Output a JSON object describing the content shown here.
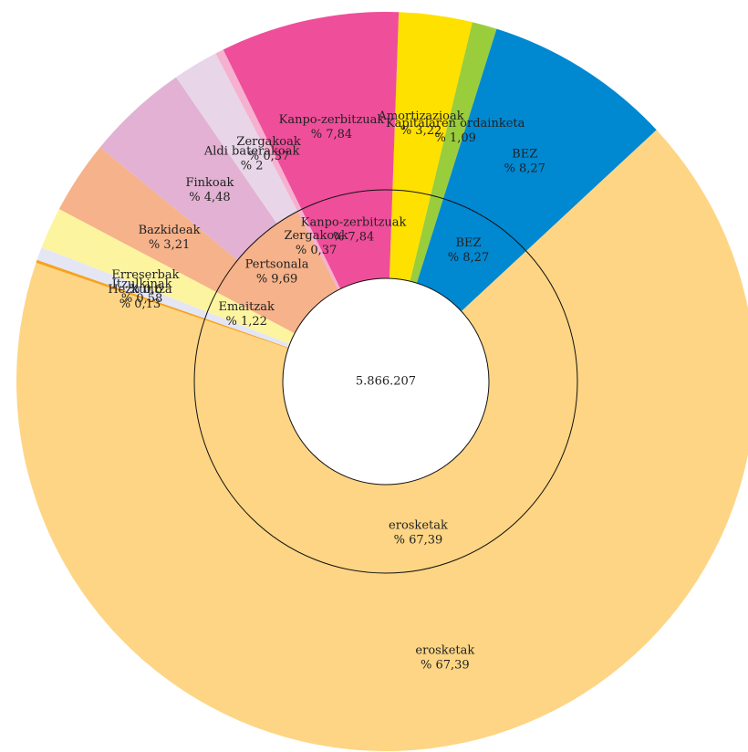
{
  "chart_data": {
    "type": "sunburst",
    "center_label": "5.866.207",
    "start_angle": 2,
    "rings": [
      {
        "categories": [
          null,
          null,
          "BEZ",
          "erosketak",
          null,
          null,
          null,
          "Emaitzak",
          "Pertsonala",
          "Zergakoak",
          "Kanpo-zerbitzuak"
        ],
        "values": [
          3.22,
          1.09,
          8.27,
          67.39,
          0.13,
          0.58,
          0.6,
          1.22,
          9.69,
          0.37,
          7.84
        ],
        "value_labels": [
          null,
          null,
          "% 8,27",
          "% 67,39",
          null,
          null,
          null,
          "% 1,22",
          "% 9,69",
          "% 0,37",
          "% 7,84"
        ],
        "colors": [
          "#ffe100",
          "#9acd3c",
          "#0088d1",
          "#fdd584",
          "#f7a21e",
          "#e4e6f4",
          "#fdf4a0",
          "#fdf4a0",
          "#f6b28a",
          "#f6b0d0",
          "#ef4e9a"
        ]
      },
      {
        "categories": [
          "Amortizazioak",
          "Kapitalaren ordainketa",
          "BEZ",
          "erosketak",
          "Hezkuntza",
          "Itzulkinak",
          "Erreserbak",
          null,
          "Bazkideak",
          "Finkoak",
          "Aldi baterakoak",
          "Zergakoak",
          "Kanpo-zerbitzuak"
        ],
        "values": [
          3.22,
          1.09,
          8.27,
          67.39,
          0.13,
          0.58,
          0.6,
          1.22,
          3.21,
          4.48,
          2,
          0.37,
          7.84
        ],
        "value_labels": [
          "% 3,22",
          "% 1,09",
          "% 8,27",
          "% 67,39",
          "% 0,13",
          "% 0,58",
          "% 0,6",
          null,
          "% 3,21",
          "% 4,48",
          "% 2",
          "% 0,37",
          "% 7,84"
        ],
        "colors": [
          "#ffe100",
          "#9acd3c",
          "#0088d1",
          "#fdd584",
          "#f7a21e",
          "#e4e6f4",
          "#fdf4a0",
          "#fdf4a0",
          "#f6b28a",
          "#e2b1d3",
          "#e8d5e8",
          "#f6b0d0",
          "#ef4e9a"
        ]
      }
    ]
  }
}
